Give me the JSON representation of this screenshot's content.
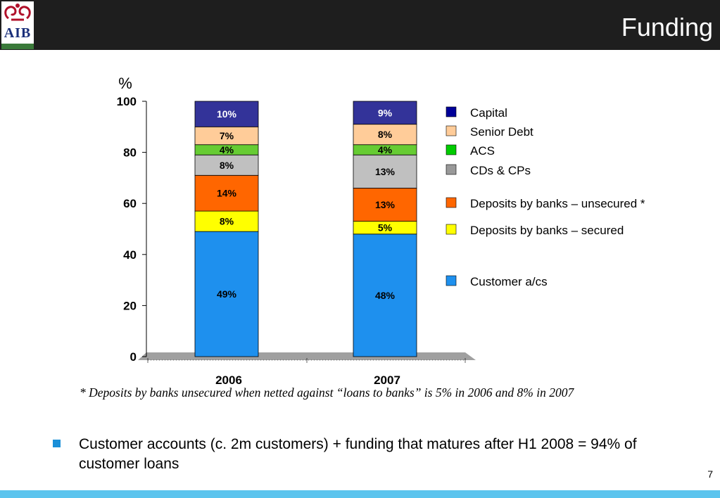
{
  "header": {
    "title": "Funding",
    "logo_text": "AIB"
  },
  "chart_data": {
    "type": "bar",
    "stacked": true,
    "categories": [
      "2006",
      "2007"
    ],
    "ylabel": "%",
    "ylim": [
      0,
      100
    ],
    "yticks": [
      "0",
      "20",
      "40",
      "60",
      "80",
      "100"
    ],
    "series": [
      {
        "name": "Customer a/cs",
        "color": "#1e90ee",
        "values": [
          49,
          48
        ],
        "labels": [
          "49%",
          "48%"
        ]
      },
      {
        "name": "Deposits by banks – secured",
        "color": "#ffff00",
        "values": [
          8,
          5
        ],
        "labels": [
          "8%",
          "5%"
        ]
      },
      {
        "name": "Deposits by banks – unsecured *",
        "color": "#ff6600",
        "values": [
          14,
          13
        ],
        "labels": [
          "14%",
          "13%"
        ]
      },
      {
        "name": "CDs & CPs",
        "color": "#c0c0c0",
        "values": [
          8,
          13
        ],
        "labels": [
          "8%",
          "13%"
        ]
      },
      {
        "name": "ACS",
        "color": "#66cc33",
        "values": [
          4,
          4
        ],
        "labels": [
          "4%",
          "4%"
        ]
      },
      {
        "name": "Senior Debt",
        "color": "#ffcc99",
        "values": [
          7,
          8
        ],
        "labels": [
          "7%",
          "8%"
        ]
      },
      {
        "name": "Capital",
        "color": "#333399",
        "values": [
          10,
          9
        ],
        "labels": [
          "10%",
          "9%"
        ]
      }
    ],
    "legend_order": [
      "Capital",
      "Senior Debt",
      "ACS",
      "CDs & CPs",
      "Deposits by banks – unsecured *",
      "Deposits by banks – secured",
      "Customer a/cs"
    ],
    "legend_colors": [
      "#000099",
      "#ffcc99",
      "#00cc00",
      "#999999",
      "#ff6600",
      "#ffff00",
      "#1e90ee"
    ],
    "legend_position": "right"
  },
  "footnote": "*  Deposits by banks unsecured when netted against “loans to banks” is 5% in 2006 and 8% in 2007",
  "bullet": "Customer accounts (c. 2m customers) + funding that matures after H1 2008 = 94% of customer loans",
  "page_number": "7"
}
